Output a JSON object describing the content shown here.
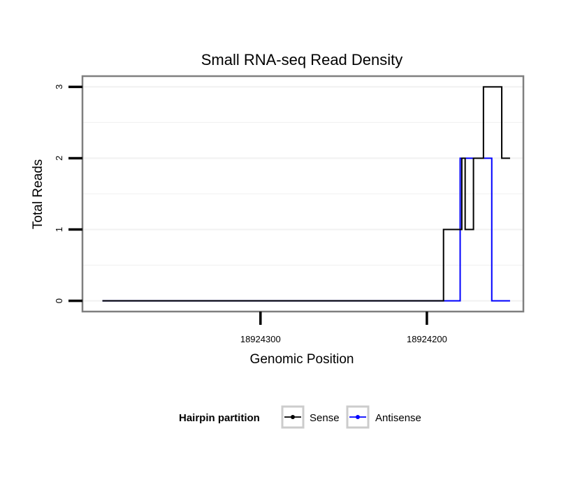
{
  "chart_data": {
    "type": "line",
    "title": "Small RNA-seq Read Density",
    "xlabel": "Genomic Position",
    "ylabel": "Total Reads",
    "x_reversed": true,
    "xlim": [
      18924407,
      18924142
    ],
    "ylim": [
      -0.15,
      3.15
    ],
    "x_ticks": [
      {
        "value": 18924300,
        "label": "18924300"
      },
      {
        "value": 18924200,
        "label": "18924200"
      }
    ],
    "y_ticks": [
      {
        "value": 0,
        "label": "0"
      },
      {
        "value": 1,
        "label": "1"
      },
      {
        "value": 2,
        "label": "2"
      },
      {
        "value": 3,
        "label": "3"
      }
    ],
    "grid": true,
    "step": true,
    "series": [
      {
        "name": "Sense",
        "color": "#000000",
        "x": [
          18924395,
          18924190,
          18924190,
          18924179,
          18924179,
          18924177,
          18924177,
          18924172,
          18924172,
          18924166,
          18924166,
          18924155,
          18924155,
          18924150
        ],
        "y": [
          0,
          0,
          1,
          1,
          2,
          2,
          1,
          1,
          2,
          2,
          3,
          3,
          2,
          2
        ]
      },
      {
        "name": "Antisense",
        "color": "#0000ff",
        "x": [
          18924395,
          18924180,
          18924180,
          18924161,
          18924161,
          18924150
        ],
        "y": [
          0,
          0,
          2,
          2,
          0,
          0
        ]
      }
    ],
    "legend": {
      "title": "Hairpin partition",
      "position": "bottom",
      "entries": [
        {
          "label": "Sense",
          "color": "#000000"
        },
        {
          "label": "Antisense",
          "color": "#0000ff"
        }
      ]
    }
  }
}
